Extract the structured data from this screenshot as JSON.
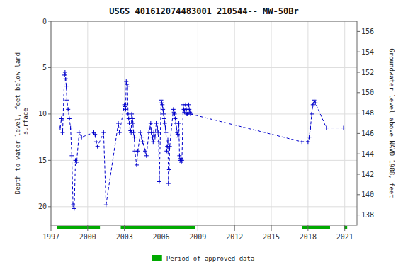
{
  "chart_data": {
    "type": "line",
    "title": "USGS 401612074483001 210544-- MW-50Br",
    "y_label": "Depth to water level, feet below land\n surface",
    "y2_label": "Groundwater level above NAVD 1988, feet",
    "xlim": [
      1997,
      2022
    ],
    "ylim": [
      22,
      0
    ],
    "y2lim": [
      137,
      157
    ],
    "xticks": [
      1997,
      2000,
      2003,
      2006,
      2009,
      2012,
      2015,
      2018,
      2021
    ],
    "yticks": [
      0,
      5,
      10,
      15,
      20
    ],
    "y2ticks": [
      138,
      140,
      142,
      144,
      146,
      148,
      150,
      152,
      154,
      156
    ],
    "grid": true,
    "legend": "bottom",
    "periods": {
      "name": "Period of approved data",
      "color": "#00aa00",
      "ranges": [
        [
          1997.5,
          2001.0
        ],
        [
          2002.7,
          2008.8
        ],
        [
          2017.5,
          2019.8
        ],
        [
          2020.9,
          2021.2
        ]
      ]
    },
    "x": [
      1997.75,
      1997.85,
      1997.95,
      1998.1,
      1998.15,
      1998.2,
      1998.25,
      1998.3,
      1998.4,
      1998.5,
      1998.6,
      1998.7,
      1998.8,
      1998.9,
      1999.0,
      1999.1,
      1999.3,
      1999.5,
      2000.5,
      2000.6,
      2000.7,
      2000.8,
      2001.3,
      2001.5,
      2002.5,
      2002.6,
      2003.0,
      2003.05,
      2003.1,
      2003.15,
      2003.2,
      2003.25,
      2003.3,
      2003.35,
      2003.4,
      2003.45,
      2003.5,
      2003.55,
      2003.6,
      2003.65,
      2003.7,
      2003.75,
      2003.8,
      2003.85,
      2004.0,
      2004.1,
      2004.3,
      2004.4,
      2004.5,
      2004.7,
      2004.8,
      2005.0,
      2005.1,
      2005.15,
      2005.2,
      2005.3,
      2005.35,
      2005.4,
      2005.5,
      2005.6,
      2005.7,
      2005.75,
      2005.8,
      2005.85,
      2006.0,
      2006.05,
      2006.1,
      2006.15,
      2006.2,
      2006.25,
      2006.3,
      2006.35,
      2006.4,
      2006.45,
      2006.5,
      2006.55,
      2006.6,
      2006.65,
      2006.7,
      2007.0,
      2007.05,
      2007.1,
      2007.15,
      2007.2,
      2007.25,
      2007.3,
      2007.35,
      2007.4,
      2007.45,
      2007.5,
      2007.55,
      2007.6,
      2007.65,
      2007.7,
      2007.8,
      2007.85,
      2007.9,
      2008.0,
      2008.05,
      2008.1,
      2008.15,
      2008.2,
      2008.25,
      2008.3,
      2008.35,
      2008.4,
      2017.5,
      2018.0,
      2018.1,
      2018.2,
      2018.3,
      2018.4,
      2018.5,
      2018.6,
      2019.5,
      2020.9
    ],
    "series": [
      {
        "color": "#0000cc",
        "marker": "plus",
        "line_style": "dashed",
        "values": [
          11.5,
          10.5,
          12.0,
          5.8,
          5.5,
          6.2,
          7.0,
          8.5,
          9.5,
          10.5,
          11.5,
          14.5,
          19.8,
          20.2,
          15.0,
          15.2,
          12.0,
          12.5,
          12.0,
          12.2,
          13.0,
          13.5,
          12.0,
          19.8,
          11.0,
          12.0,
          9.0,
          9.2,
          9.5,
          6.5,
          6.8,
          7.0,
          10.0,
          10.5,
          11.0,
          11.5,
          11.8,
          12.0,
          10.0,
          10.5,
          11.0,
          12.0,
          12.5,
          14.0,
          15.5,
          14.0,
          12.0,
          12.5,
          13.0,
          14.0,
          14.5,
          12.0,
          11.5,
          11.0,
          12.0,
          12.5,
          13.0,
          12.0,
          12.5,
          11.0,
          11.5,
          12.0,
          13.0,
          17.3,
          8.5,
          8.8,
          9.0,
          9.5,
          10.0,
          10.5,
          11.0,
          11.5,
          12.0,
          14.0,
          13.5,
          12.8,
          17.5,
          16.0,
          13.5,
          9.5,
          9.8,
          10.0,
          10.5,
          11.0,
          11.5,
          12.0,
          12.2,
          12.5,
          11.0,
          14.5,
          15.0,
          14.8,
          15.2,
          15.0,
          9.0,
          9.5,
          9.8,
          9.0,
          9.5,
          10.0,
          10.0,
          9.5,
          9.0,
          9.5,
          9.8,
          10.0,
          13.0,
          13.0,
          12.5,
          11.5,
          10.0,
          9.0,
          8.5,
          8.8,
          11.5,
          11.5
        ]
      }
    ]
  }
}
